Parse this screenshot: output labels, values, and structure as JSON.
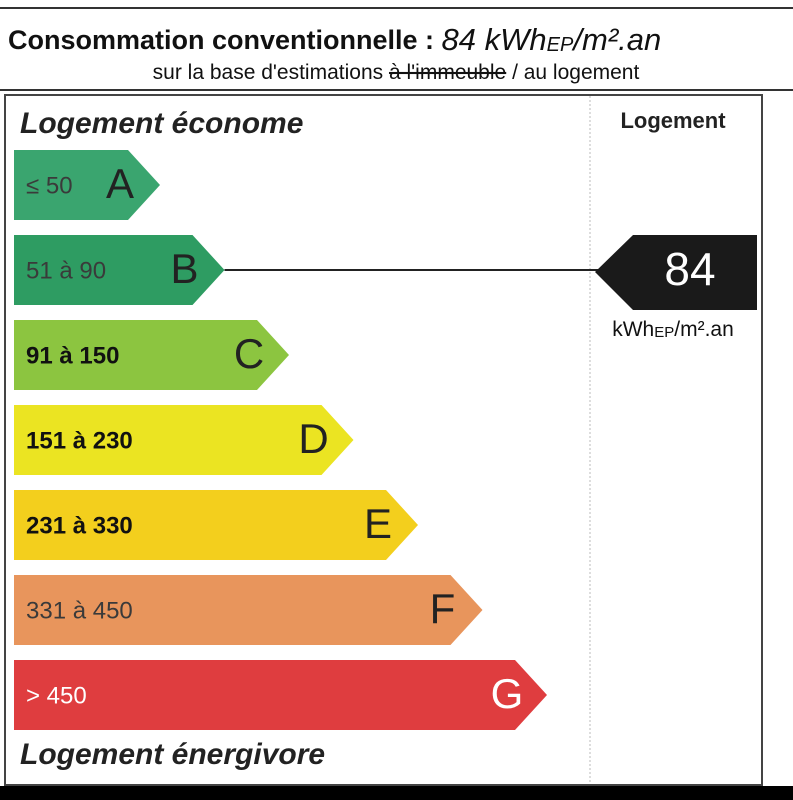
{
  "header": {
    "title": "Consommation conventionnelle :",
    "value": "84 kWh",
    "value_sub": "EP",
    "value_unit": "/m².an",
    "subtitle_start": "sur la base d'estimations",
    "subtitle_struck": "à l'immeuble",
    "subtitle_end": "/ au logement"
  },
  "panel": {
    "top_label": "Logement économe",
    "bottom_label": "Logement énergivore",
    "column_header": "Logement"
  },
  "bands": [
    {
      "range": "≤ 50",
      "letter": "A",
      "color": "#3aa56f",
      "text_color": "#3a3a3a"
    },
    {
      "range": "51 à 90",
      "letter": "B",
      "color": "#2e9c62",
      "text_color": "#3a3a3a"
    },
    {
      "range": "91 à 150",
      "letter": "C",
      "color": "#8cc540",
      "text_color": "#111111"
    },
    {
      "range": "151 à 230",
      "letter": "D",
      "color": "#ebe422",
      "text_color": "#111111"
    },
    {
      "range": "231 à 330",
      "letter": "E",
      "color": "#f3cf1d",
      "text_color": "#111111"
    },
    {
      "range": "331 à 450",
      "letter": "F",
      "color": "#e8955c",
      "text_color": "#3a3a3a"
    },
    {
      "range": "> 450",
      "letter": "G",
      "color": "#df3d3f",
      "text_color": "#ffffff"
    }
  ],
  "indicator": {
    "value": "84",
    "unit": "kWh",
    "unit_sub": "EP",
    "unit_end": "/m².an",
    "band_index": 1
  }
}
